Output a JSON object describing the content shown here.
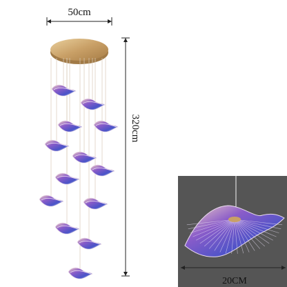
{
  "dimensions": {
    "width_label": "50cm",
    "height_label": "320cm",
    "inset_label": "20CM"
  }
}
